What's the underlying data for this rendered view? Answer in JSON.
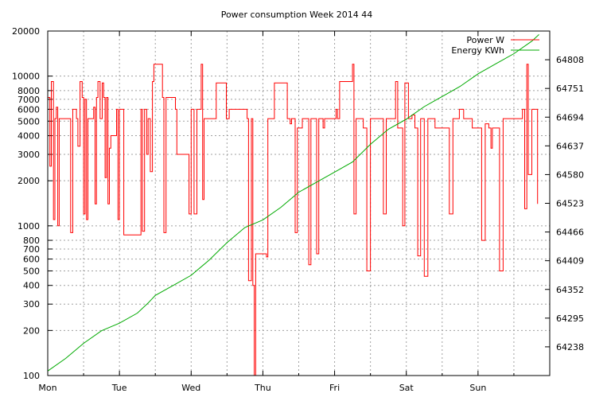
{
  "chart_data": {
    "type": "line",
    "title": "Power consumption Week 2014 44",
    "x_tick_labels": [
      "Mon",
      "Tue",
      "Wed",
      "Thu",
      "Fri",
      "Sat",
      "Sun"
    ],
    "x_range_days": [
      0,
      7
    ],
    "y_left": {
      "scale": "log",
      "range": [
        100,
        20000
      ],
      "ticks": [
        100,
        200,
        300,
        400,
        500,
        600,
        700,
        800,
        1000,
        2000,
        3000,
        4000,
        5000,
        6000,
        7000,
        8000,
        10000,
        20000
      ]
    },
    "y_right": {
      "scale": "linear",
      "range": [
        64181,
        64865
      ],
      "ticks": [
        64238,
        64295,
        64352,
        64409,
        64466,
        64523,
        64580,
        64637,
        64694,
        64751,
        64808
      ]
    },
    "grid": true,
    "legend_position": "top-right",
    "series": [
      {
        "name": "Power W",
        "axis": "left",
        "color": "#ff0000",
        "points": [
          [
            0.0,
            7200
          ],
          [
            0.03,
            2500
          ],
          [
            0.05,
            9200
          ],
          [
            0.08,
            1100
          ],
          [
            0.1,
            5200
          ],
          [
            0.12,
            6200
          ],
          [
            0.14,
            1000
          ],
          [
            0.16,
            5200
          ],
          [
            0.3,
            5200
          ],
          [
            0.32,
            900
          ],
          [
            0.35,
            6000
          ],
          [
            0.4,
            5200
          ],
          [
            0.42,
            3400
          ],
          [
            0.45,
            9200
          ],
          [
            0.48,
            7200
          ],
          [
            0.5,
            1200
          ],
          [
            0.52,
            7000
          ],
          [
            0.54,
            1100
          ],
          [
            0.56,
            5200
          ],
          [
            0.62,
            5200
          ],
          [
            0.64,
            6200
          ],
          [
            0.66,
            1400
          ],
          [
            0.68,
            7200
          ],
          [
            0.7,
            9200
          ],
          [
            0.73,
            5200
          ],
          [
            0.76,
            9000
          ],
          [
            0.78,
            7200
          ],
          [
            0.8,
            2100
          ],
          [
            0.82,
            7200
          ],
          [
            0.84,
            1400
          ],
          [
            0.86,
            3300
          ],
          [
            0.88,
            4000
          ],
          [
            0.96,
            6000
          ],
          [
            0.98,
            1100
          ],
          [
            1.0,
            6000
          ],
          [
            1.06,
            870
          ],
          [
            1.28,
            870
          ],
          [
            1.3,
            6000
          ],
          [
            1.32,
            920
          ],
          [
            1.35,
            6000
          ],
          [
            1.38,
            3000
          ],
          [
            1.4,
            5200
          ],
          [
            1.43,
            2300
          ],
          [
            1.46,
            9200
          ],
          [
            1.48,
            12000
          ],
          [
            1.6,
            7200
          ],
          [
            1.62,
            900
          ],
          [
            1.65,
            7200
          ],
          [
            1.78,
            6000
          ],
          [
            1.8,
            3000
          ],
          [
            1.95,
            3000
          ],
          [
            1.97,
            1200
          ],
          [
            2.0,
            6000
          ],
          [
            2.04,
            1200
          ],
          [
            2.08,
            6000
          ],
          [
            2.14,
            12000
          ],
          [
            2.16,
            1500
          ],
          [
            2.18,
            5200
          ],
          [
            2.35,
            9000
          ],
          [
            2.49,
            5200
          ],
          [
            2.53,
            6000
          ],
          [
            2.75,
            6000
          ],
          [
            2.78,
            5200
          ],
          [
            2.8,
            430
          ],
          [
            2.84,
            5200
          ],
          [
            2.86,
            400
          ],
          [
            2.88,
            100
          ],
          [
            2.9,
            650
          ],
          [
            3.05,
            620
          ],
          [
            3.07,
            5200
          ],
          [
            3.16,
            9000
          ],
          [
            3.34,
            5200
          ],
          [
            3.38,
            4800
          ],
          [
            3.4,
            5200
          ],
          [
            3.45,
            900
          ],
          [
            3.48,
            4500
          ],
          [
            3.55,
            5200
          ],
          [
            3.64,
            550
          ],
          [
            3.67,
            5200
          ],
          [
            3.75,
            650
          ],
          [
            3.78,
            5200
          ],
          [
            3.84,
            4500
          ],
          [
            3.86,
            5200
          ],
          [
            4.02,
            6000
          ],
          [
            4.04,
            5200
          ],
          [
            4.07,
            9200
          ],
          [
            4.25,
            12000
          ],
          [
            4.27,
            1200
          ],
          [
            4.3,
            5200
          ],
          [
            4.4,
            4500
          ],
          [
            4.45,
            500
          ],
          [
            4.5,
            5200
          ],
          [
            4.68,
            1200
          ],
          [
            4.72,
            5200
          ],
          [
            4.85,
            9200
          ],
          [
            4.88,
            4500
          ],
          [
            4.95,
            1000
          ],
          [
            4.98,
            9000
          ],
          [
            5.03,
            5200
          ],
          [
            5.05,
            5200
          ],
          [
            5.08,
            5500
          ],
          [
            5.12,
            4500
          ],
          [
            5.16,
            630
          ],
          [
            5.2,
            5200
          ],
          [
            5.25,
            460
          ],
          [
            5.3,
            5200
          ],
          [
            5.4,
            4500
          ],
          [
            5.58,
            4500
          ],
          [
            5.6,
            1200
          ],
          [
            5.65,
            5200
          ],
          [
            5.7,
            5200
          ],
          [
            5.74,
            6000
          ],
          [
            5.8,
            5200
          ],
          [
            5.85,
            5200
          ],
          [
            5.92,
            4500
          ],
          [
            6.0,
            4500
          ],
          [
            6.05,
            800
          ],
          [
            6.1,
            4800
          ],
          [
            6.15,
            4500
          ],
          [
            6.18,
            3300
          ],
          [
            6.2,
            4500
          ],
          [
            6.3,
            500
          ],
          [
            6.35,
            5200
          ],
          [
            6.6,
            5200
          ],
          [
            6.62,
            6000
          ],
          [
            6.65,
            1300
          ],
          [
            6.68,
            12000
          ],
          [
            6.7,
            2200
          ],
          [
            6.75,
            6000
          ],
          [
            6.82,
            6000
          ],
          [
            6.83,
            1400
          ]
        ]
      },
      {
        "name": "Energy KWh",
        "axis": "right",
        "color": "#00aa00",
        "points": [
          [
            0.0,
            64190
          ],
          [
            0.25,
            64215
          ],
          [
            0.5,
            64245
          ],
          [
            0.75,
            64270
          ],
          [
            1.0,
            64285
          ],
          [
            1.25,
            64305
          ],
          [
            1.4,
            64325
          ],
          [
            1.5,
            64340
          ],
          [
            1.75,
            64360
          ],
          [
            2.0,
            64380
          ],
          [
            2.25,
            64410
          ],
          [
            2.5,
            64445
          ],
          [
            2.75,
            64475
          ],
          [
            3.0,
            64490
          ],
          [
            3.25,
            64515
          ],
          [
            3.5,
            64545
          ],
          [
            3.75,
            64565
          ],
          [
            4.0,
            64585
          ],
          [
            4.25,
            64605
          ],
          [
            4.5,
            64640
          ],
          [
            4.75,
            64670
          ],
          [
            5.0,
            64690
          ],
          [
            5.25,
            64715
          ],
          [
            5.5,
            64735
          ],
          [
            5.75,
            64755
          ],
          [
            6.0,
            64780
          ],
          [
            6.25,
            64800
          ],
          [
            6.5,
            64820
          ],
          [
            6.75,
            64845
          ],
          [
            6.85,
            64858
          ]
        ]
      }
    ]
  }
}
